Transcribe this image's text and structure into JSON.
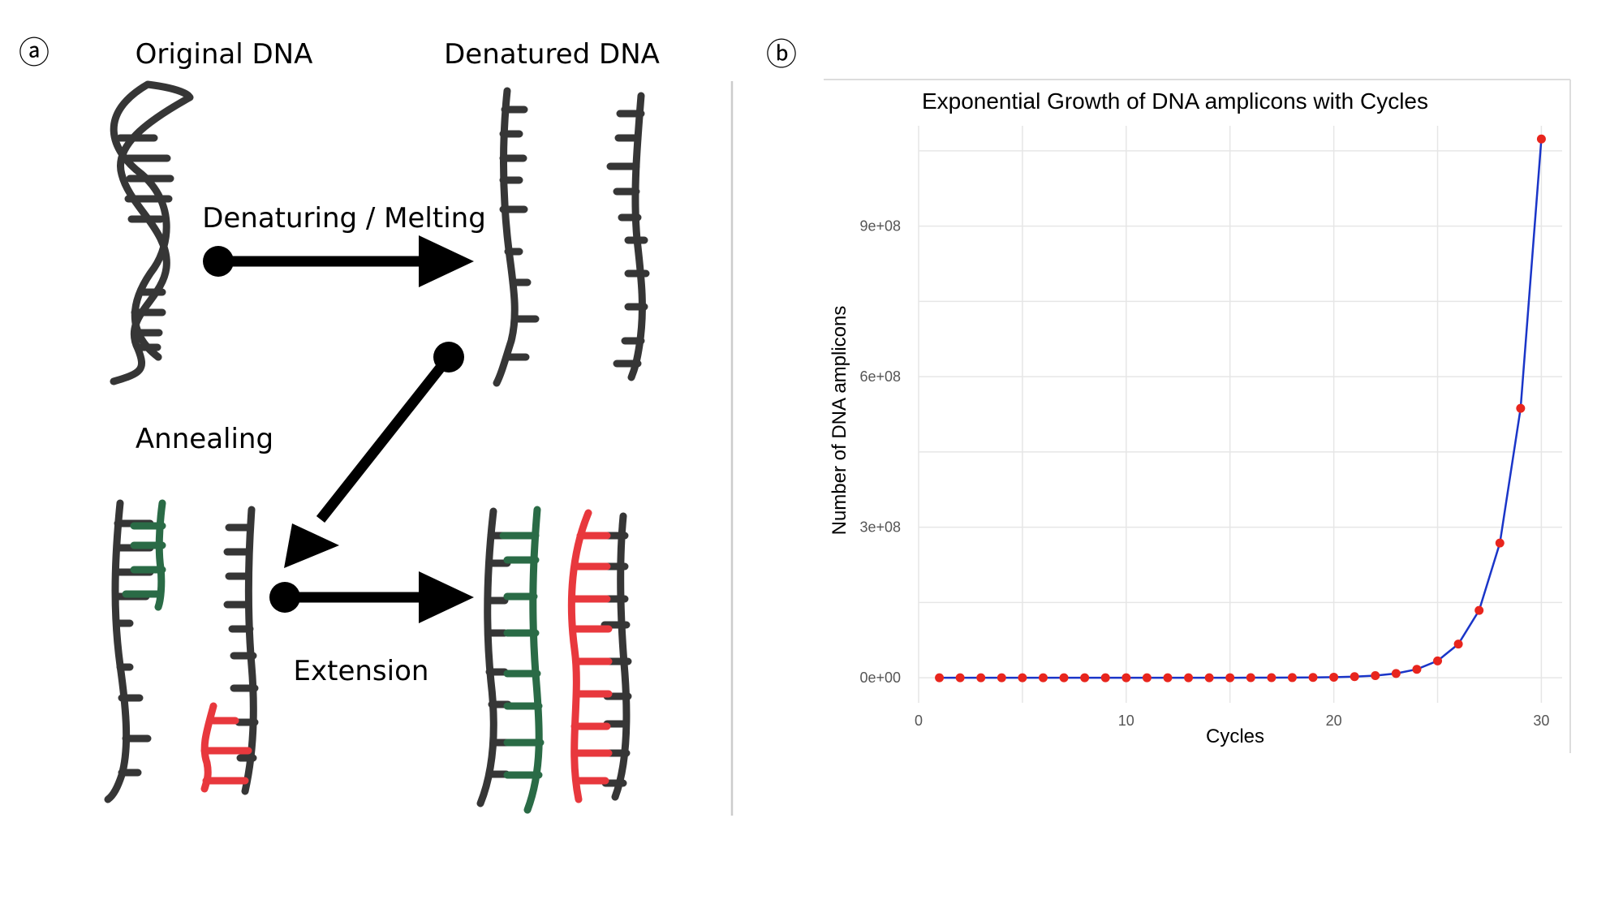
{
  "panel_a": {
    "marker": "ⓐ",
    "original_label": "Original DNA",
    "denatured_label": "Denatured DNA",
    "denaturing_label": "Denaturing / Melting",
    "annealing_label": "Annealing",
    "extension_label": "Extension",
    "colors": {
      "strand": "#363636",
      "primer_green": "#2a6b46",
      "primer_red": "#e8383d",
      "arrow": "#000000"
    }
  },
  "panel_b": {
    "marker": "ⓑ",
    "chart_data": {
      "type": "line",
      "title": "Exponential Growth of DNA amplicons with Cycles",
      "xlabel": "Cycles",
      "ylabel": "Number of DNA amplicons",
      "xlim": [
        0,
        31
      ],
      "ylim": [
        -50000000.0,
        1100000000.0
      ],
      "x_ticks": [
        0,
        10,
        20,
        30
      ],
      "x_tick_labels": [
        "0",
        "10",
        "20",
        "30"
      ],
      "y_ticks": [
        0,
        300000000,
        600000000,
        900000000
      ],
      "y_tick_labels": [
        "0e+00",
        "3e+08",
        "6e+08",
        "9e+08"
      ],
      "grid": true,
      "line_color": "#1a35c8",
      "point_color": "#e8251d",
      "x": [
        1,
        2,
        3,
        4,
        5,
        6,
        7,
        8,
        9,
        10,
        11,
        12,
        13,
        14,
        15,
        16,
        17,
        18,
        19,
        20,
        21,
        22,
        23,
        24,
        25,
        26,
        27,
        28,
        29,
        30
      ],
      "y": [
        2,
        4,
        8,
        16,
        32,
        64,
        128,
        256,
        512,
        1024,
        2048,
        4096,
        8192,
        16384,
        32768,
        65536,
        131072,
        262144,
        524288,
        1048576,
        2097152,
        4194304,
        8388608,
        16777216,
        33554432,
        67108864,
        134217728,
        268435456,
        536870912,
        1073741824
      ]
    }
  }
}
